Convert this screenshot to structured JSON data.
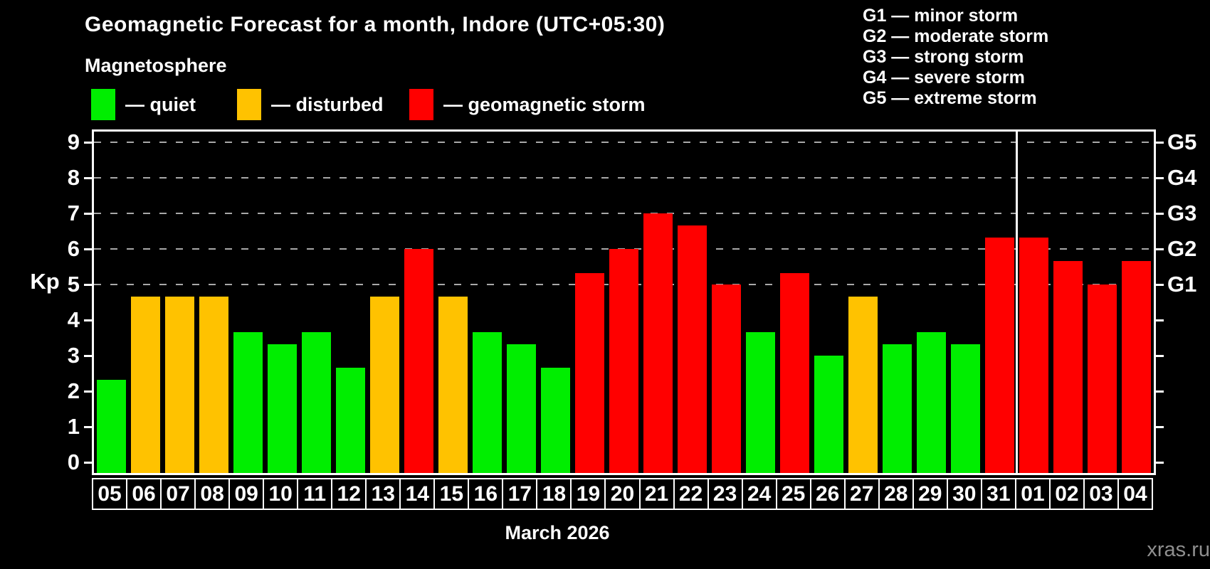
{
  "watermark": "xras.ru",
  "legend": {
    "dash": "—",
    "items": [
      {
        "key": "quiet",
        "label": "quiet",
        "color": "#00ee00"
      },
      {
        "key": "disturbed",
        "label": "disturbed",
        "color": "#ffc200"
      },
      {
        "key": "storm",
        "label": "geomagnetic storm",
        "color": "#ff0000"
      }
    ]
  },
  "g_legend": {
    "dash": "—",
    "items": [
      {
        "code": "G1",
        "label": "minor storm"
      },
      {
        "code": "G2",
        "label": "moderate storm"
      },
      {
        "code": "G3",
        "label": "strong storm"
      },
      {
        "code": "G4",
        "label": "severe storm"
      },
      {
        "code": "G5",
        "label": "extreme storm"
      }
    ]
  },
  "chart_data": {
    "type": "bar",
    "title": "Geomagnetic Forecast for a month, Indore (UTC+05:30)",
    "subtitle": "Magnetosphere",
    "ylabel": "Kp",
    "xlabel": "March 2026",
    "ylim": [
      0,
      9
    ],
    "yticks": [
      0,
      1,
      2,
      3,
      4,
      5,
      6,
      7,
      8,
      9
    ],
    "gridlines_at": [
      5,
      6,
      7,
      8,
      9
    ],
    "grid_style": "dashed",
    "right_axis_labels": [
      {
        "tick": 5,
        "label": "G1"
      },
      {
        "tick": 6,
        "label": "G2"
      },
      {
        "tick": 7,
        "label": "G3"
      },
      {
        "tick": 8,
        "label": "G4"
      },
      {
        "tick": 9,
        "label": "G5"
      }
    ],
    "colors": {
      "quiet": "#00ee00",
      "disturbed": "#ffc200",
      "storm": "#ff0000"
    },
    "month_separator_after_index": 26,
    "bars": [
      {
        "day": "05",
        "kp": 2.33,
        "state": "quiet"
      },
      {
        "day": "06",
        "kp": 4.67,
        "state": "disturbed"
      },
      {
        "day": "07",
        "kp": 4.67,
        "state": "disturbed"
      },
      {
        "day": "08",
        "kp": 4.67,
        "state": "disturbed"
      },
      {
        "day": "09",
        "kp": 3.67,
        "state": "quiet"
      },
      {
        "day": "10",
        "kp": 3.33,
        "state": "quiet"
      },
      {
        "day": "11",
        "kp": 3.67,
        "state": "quiet"
      },
      {
        "day": "12",
        "kp": 2.67,
        "state": "quiet"
      },
      {
        "day": "13",
        "kp": 4.67,
        "state": "disturbed"
      },
      {
        "day": "14",
        "kp": 6.0,
        "state": "storm"
      },
      {
        "day": "15",
        "kp": 4.67,
        "state": "disturbed"
      },
      {
        "day": "16",
        "kp": 3.67,
        "state": "quiet"
      },
      {
        "day": "17",
        "kp": 3.33,
        "state": "quiet"
      },
      {
        "day": "18",
        "kp": 2.67,
        "state": "quiet"
      },
      {
        "day": "19",
        "kp": 5.33,
        "state": "storm"
      },
      {
        "day": "20",
        "kp": 6.0,
        "state": "storm"
      },
      {
        "day": "21",
        "kp": 7.0,
        "state": "storm"
      },
      {
        "day": "22",
        "kp": 6.67,
        "state": "storm"
      },
      {
        "day": "23",
        "kp": 5.0,
        "state": "storm"
      },
      {
        "day": "24",
        "kp": 3.67,
        "state": "quiet"
      },
      {
        "day": "25",
        "kp": 5.33,
        "state": "storm"
      },
      {
        "day": "26",
        "kp": 3.0,
        "state": "quiet"
      },
      {
        "day": "27",
        "kp": 4.67,
        "state": "disturbed"
      },
      {
        "day": "28",
        "kp": 3.33,
        "state": "quiet"
      },
      {
        "day": "29",
        "kp": 3.67,
        "state": "quiet"
      },
      {
        "day": "30",
        "kp": 3.33,
        "state": "quiet"
      },
      {
        "day": "31",
        "kp": 6.33,
        "state": "storm"
      },
      {
        "day": "01",
        "kp": 6.33,
        "state": "storm"
      },
      {
        "day": "02",
        "kp": 5.67,
        "state": "storm"
      },
      {
        "day": "03",
        "kp": 5.0,
        "state": "storm"
      },
      {
        "day": "04",
        "kp": 5.67,
        "state": "storm"
      }
    ]
  }
}
